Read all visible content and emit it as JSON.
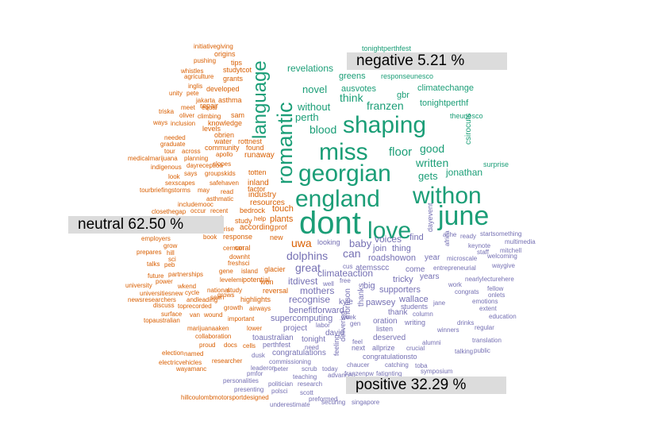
{
  "chart_data": {
    "type": "comparison_wordcloud",
    "colors": {
      "negative": "#1b9e77",
      "neutral": "#d95f02",
      "positive": "#7570b3"
    },
    "labels": {
      "negative": "negative 5.21 %",
      "neutral": "neutral 62.50 %",
      "positive": "positive 32.29 %"
    },
    "words": [
      [
        "dont",
        "negative",
        40
      ],
      [
        "june",
        "negative",
        34
      ],
      [
        "withon",
        "negative",
        30
      ],
      [
        "england",
        "negative",
        30
      ],
      [
        "georgian",
        "negative",
        30
      ],
      [
        "love",
        "negative",
        30
      ],
      [
        "miss",
        "negative",
        30
      ],
      [
        "shaping",
        "negative",
        30
      ],
      [
        "romantic",
        "negative",
        27
      ],
      [
        "language",
        "negative",
        24
      ],
      [
        "floor",
        "negative",
        15
      ],
      [
        "good",
        "negative",
        14
      ],
      [
        "written",
        "negative",
        14
      ],
      [
        "franzen",
        "negative",
        14
      ],
      [
        "think",
        "negative",
        14
      ],
      [
        "gets",
        "negative",
        13
      ],
      [
        "jonathan",
        "negative",
        12
      ],
      [
        "blood",
        "negative",
        14
      ],
      [
        "perth",
        "negative",
        13
      ],
      [
        "without",
        "negative",
        13
      ],
      [
        "novel",
        "negative",
        13
      ],
      [
        "revelations",
        "negative",
        12
      ],
      [
        "greens",
        "negative",
        11
      ],
      [
        "ausvotes",
        "negative",
        11
      ],
      [
        "gbr",
        "negative",
        11
      ],
      [
        "climatechange",
        "negative",
        11
      ],
      [
        "tonightperthf",
        "negative",
        11
      ],
      [
        "csirocuts",
        "negative",
        10
      ],
      [
        "theunesco",
        "negative",
        9
      ],
      [
        "surprise",
        "negative",
        9
      ],
      [
        "responseunesco",
        "negative",
        9
      ],
      [
        "tonightperthfest",
        "negative",
        9
      ],
      [
        "uwa",
        "neutral",
        14
      ],
      [
        "plants",
        "neutral",
        11
      ],
      [
        "touch",
        "neutral",
        11
      ],
      [
        "according",
        "neutral",
        10
      ],
      [
        "resources",
        "neutral",
        10
      ],
      [
        "industry",
        "neutral",
        10
      ],
      [
        "inland",
        "neutral",
        10
      ],
      [
        "runaway",
        "neutral",
        10
      ],
      [
        "rottnest",
        "neutral",
        9
      ],
      [
        "factor",
        "neutral",
        9
      ],
      [
        "totten",
        "neutral",
        9
      ],
      [
        "found",
        "neutral",
        9
      ],
      [
        "community",
        "neutral",
        9
      ],
      [
        "water",
        "neutral",
        9
      ],
      [
        "obrien",
        "neutral",
        9
      ],
      [
        "knowledge",
        "neutral",
        9
      ],
      [
        "levels",
        "neutral",
        9
      ],
      [
        "sam",
        "neutral",
        9
      ],
      [
        "asthma",
        "neutral",
        9
      ],
      [
        "repair",
        "neutral",
        9
      ],
      [
        "developed",
        "neutral",
        9
      ],
      [
        "grants",
        "neutral",
        9
      ],
      [
        "tips",
        "neutral",
        9
      ],
      [
        "origins",
        "neutral",
        9
      ],
      [
        "studytcot",
        "neutral",
        9
      ],
      [
        "initiativegiving",
        "neutral",
        8
      ],
      [
        "pushing",
        "neutral",
        8
      ],
      [
        "whistles",
        "neutral",
        8
      ],
      [
        "agriculture",
        "neutral",
        8
      ],
      [
        "inglis",
        "neutral",
        8
      ],
      [
        "unity",
        "neutral",
        8
      ],
      [
        "pete",
        "neutral",
        8
      ],
      [
        "jakarta",
        "neutral",
        8
      ],
      [
        "triska",
        "neutral",
        8
      ],
      [
        "meet",
        "neutral",
        8
      ],
      [
        "equal",
        "neutral",
        8
      ],
      [
        "oliver",
        "neutral",
        8
      ],
      [
        "climbing",
        "neutral",
        8
      ],
      [
        "ways",
        "neutral",
        8
      ],
      [
        "inclusion",
        "neutral",
        8
      ],
      [
        "needed",
        "neutral",
        8
      ],
      [
        "graduate",
        "neutral",
        8
      ],
      [
        "tour",
        "neutral",
        8
      ],
      [
        "across",
        "neutral",
        8
      ],
      [
        "medicalmarijuana",
        "neutral",
        8
      ],
      [
        "planning",
        "neutral",
        8
      ],
      [
        "apollo",
        "neutral",
        8
      ],
      [
        "indigenous",
        "neutral",
        8
      ],
      [
        "dayreception",
        "neutral",
        8
      ],
      [
        "slopes",
        "neutral",
        8
      ],
      [
        "look",
        "neutral",
        8
      ],
      [
        "says",
        "neutral",
        8
      ],
      [
        "groupskids",
        "neutral",
        8
      ],
      [
        "sexscapes",
        "neutral",
        8
      ],
      [
        "safehaven",
        "neutral",
        8
      ],
      [
        "tourbriefing",
        "neutral",
        8
      ],
      [
        "storms",
        "neutral",
        8
      ],
      [
        "may",
        "neutral",
        8
      ],
      [
        "read",
        "neutral",
        8
      ],
      [
        "asthmatic",
        "neutral",
        8
      ],
      [
        "includemooc",
        "neutral",
        8
      ],
      [
        "closethegap",
        "neutral",
        8
      ],
      [
        "occur",
        "neutral",
        8
      ],
      [
        "recent",
        "neutral",
        8
      ],
      [
        "bedrock",
        "neutral",
        9
      ],
      [
        "help",
        "neutral",
        8
      ],
      [
        "study",
        "neutral",
        9
      ],
      [
        "response",
        "neutral",
        9
      ],
      [
        "award",
        "neutral",
        8
      ],
      [
        "book",
        "neutral",
        8
      ],
      [
        "employers",
        "neutral",
        8
      ],
      [
        "grow",
        "neutral",
        8
      ],
      [
        "hill",
        "neutral",
        8
      ],
      [
        "prepares",
        "neutral",
        8
      ],
      [
        "sci",
        "neutral",
        8
      ],
      [
        "talks",
        "neutral",
        8
      ],
      [
        "peb",
        "neutral",
        8
      ],
      [
        "future",
        "neutral",
        8
      ],
      [
        "partnerships",
        "neutral",
        8
      ],
      [
        "university",
        "neutral",
        8
      ],
      [
        "power",
        "neutral",
        8
      ],
      [
        "wkend",
        "neutral",
        8
      ],
      [
        "universitiesnew",
        "neutral",
        8
      ],
      [
        "cycle",
        "neutral",
        8
      ],
      [
        "newsresearchers",
        "neutral",
        8
      ],
      [
        "andleading",
        "neutral",
        8
      ],
      [
        "discuss",
        "neutral",
        8
      ],
      [
        "toprecorded",
        "neutral",
        8
      ],
      [
        "surface",
        "neutral",
        8
      ],
      [
        "van",
        "neutral",
        8
      ],
      [
        "wound",
        "neutral",
        8
      ],
      [
        "topaustralian",
        "neutral",
        8
      ],
      [
        "marijuanaaken",
        "neutral",
        8
      ],
      [
        "collaboration",
        "neutral",
        8
      ],
      [
        "proud",
        "neutral",
        8
      ],
      [
        "docs",
        "neutral",
        8
      ],
      [
        "named",
        "neutral",
        8
      ],
      [
        "election",
        "neutral",
        8
      ],
      [
        "electricvehicles",
        "neutral",
        8
      ],
      [
        "wayamanc",
        "neutral",
        8
      ],
      [
        "researcher",
        "neutral",
        8
      ],
      [
        "cells",
        "neutral",
        8
      ],
      [
        "hillcoulombmotorsportdesigned",
        "neutral",
        8
      ],
      [
        "cerman",
        "neutral",
        8
      ],
      [
        "coral",
        "neutral",
        9
      ],
      [
        "downht",
        "neutral",
        8
      ],
      [
        "freshsci",
        "neutral",
        8
      ],
      [
        "gene",
        "neutral",
        8
      ],
      [
        "island",
        "neutral",
        8
      ],
      [
        "glacier",
        "neutral",
        9
      ],
      [
        "levelemi",
        "neutral",
        8
      ],
      [
        "potential",
        "neutral",
        9
      ],
      [
        "national",
        "neutral",
        8
      ],
      [
        "study",
        "neutral",
        8
      ],
      [
        "highlights",
        "neutral",
        9
      ],
      [
        "grows",
        "neutral",
        8
      ],
      [
        "growth",
        "neutral",
        8
      ],
      [
        "airways",
        "neutral",
        8
      ],
      [
        "important",
        "neutral",
        8
      ],
      [
        "lower",
        "neutral",
        8
      ],
      [
        "new",
        "neutral",
        9
      ],
      [
        "reversal",
        "neutral",
        9
      ],
      [
        "prof",
        "neutral",
        9
      ],
      [
        "won",
        "neutral",
        9
      ],
      [
        "rise",
        "neutral",
        8
      ],
      [
        "seen",
        "neutral",
        8
      ],
      [
        "dolphins",
        "positive",
        14
      ],
      [
        "can",
        "positive",
        14
      ],
      [
        "great",
        "positive",
        14
      ],
      [
        "baby",
        "positive",
        13
      ],
      [
        "voices",
        "positive",
        12
      ],
      [
        "find",
        "positive",
        11
      ],
      [
        "join",
        "positive",
        11
      ],
      [
        "thing",
        "positive",
        11
      ],
      [
        "climateaction",
        "positive",
        12
      ],
      [
        "roadshowon",
        "positive",
        11
      ],
      [
        "atemsscc",
        "positive",
        10
      ],
      [
        "come",
        "positive",
        10
      ],
      [
        "year",
        "positive",
        10
      ],
      [
        "tricky",
        "positive",
        11
      ],
      [
        "itdivest",
        "positive",
        12
      ],
      [
        "mothers",
        "positive",
        12
      ],
      [
        "big",
        "positive",
        11
      ],
      [
        "supporters",
        "positive",
        11
      ],
      [
        "wallace",
        "positive",
        11
      ],
      [
        "recognise",
        "positive",
        12
      ],
      [
        "pawsey",
        "positive",
        11
      ],
      [
        "kyle",
        "positive",
        10
      ],
      [
        "thank",
        "positive",
        10
      ],
      [
        "students",
        "positive",
        9
      ],
      [
        "benefitforward",
        "positive",
        11
      ],
      [
        "supercomputing",
        "positive",
        11
      ],
      [
        "oration",
        "positive",
        10
      ],
      [
        "writing",
        "positive",
        9
      ],
      [
        "project",
        "positive",
        10
      ],
      [
        "david",
        "positive",
        10
      ],
      [
        "listen",
        "positive",
        9
      ],
      [
        "toaustralian",
        "positive",
        10
      ],
      [
        "tonight",
        "positive",
        10
      ],
      [
        "deserved",
        "positive",
        10
      ],
      [
        "congratulations",
        "positive",
        10
      ],
      [
        "next",
        "positive",
        9
      ],
      [
        "allprize",
        "positive",
        9
      ],
      [
        "crucial",
        "positive",
        8
      ],
      [
        "perthfest",
        "positive",
        9
      ],
      [
        "need",
        "positive",
        8
      ],
      [
        "congratulationsto",
        "positive",
        9
      ],
      [
        "peter",
        "positive",
        8
      ],
      [
        "commissioning",
        "positive",
        8
      ],
      [
        "scrub",
        "positive",
        8
      ],
      [
        "today",
        "positive",
        8
      ],
      [
        "chaucer",
        "positive",
        8
      ],
      [
        "catching",
        "positive",
        8
      ],
      [
        "toba",
        "positive",
        8
      ],
      [
        "symposium",
        "positive",
        8
      ],
      [
        "teaching",
        "positive",
        8
      ],
      [
        "franzenpw",
        "positive",
        8
      ],
      [
        "fatignting",
        "positive",
        8
      ],
      [
        "personalities",
        "positive",
        8
      ],
      [
        "politician",
        "positive",
        8
      ],
      [
        "research",
        "positive",
        8
      ],
      [
        "advanced",
        "positive",
        8
      ],
      [
        "presenting",
        "positive",
        8
      ],
      [
        "polsci",
        "positive",
        8
      ],
      [
        "scott",
        "positive",
        8
      ],
      [
        "preformed",
        "positive",
        8
      ],
      [
        "underestimate",
        "positive",
        8
      ],
      [
        "securing",
        "positive",
        8
      ],
      [
        "singapore",
        "positive",
        8
      ],
      [
        "ready",
        "positive",
        8
      ],
      [
        "startsomething",
        "positive",
        8
      ],
      [
        "keynote",
        "positive",
        8
      ],
      [
        "multimedia",
        "positive",
        8
      ],
      [
        "staff",
        "positive",
        8
      ],
      [
        "mitchell",
        "positive",
        8
      ],
      [
        "microscale",
        "positive",
        8
      ],
      [
        "welcoming",
        "positive",
        8
      ],
      [
        "entrepreneurial",
        "positive",
        8
      ],
      [
        "waygive",
        "positive",
        8
      ],
      [
        "nearlylecturehere",
        "positive",
        8
      ],
      [
        "congrats",
        "positive",
        8
      ],
      [
        "fellow",
        "positive",
        8
      ],
      [
        "onlets",
        "positive",
        8
      ],
      [
        "emotions",
        "positive",
        8
      ],
      [
        "extent",
        "positive",
        8
      ],
      [
        "education",
        "positive",
        8
      ],
      [
        "drinks",
        "positive",
        8
      ],
      [
        "regular",
        "positive",
        8
      ],
      [
        "winners",
        "positive",
        8
      ],
      [
        "alumni",
        "positive",
        8
      ],
      [
        "translation",
        "positive",
        8
      ],
      [
        "talking",
        "positive",
        8
      ],
      [
        "public",
        "positive",
        8
      ],
      [
        "jane",
        "positive",
        8
      ],
      [
        "column",
        "positive",
        8
      ],
      [
        "free",
        "positive",
        8
      ],
      [
        "cus",
        "positive",
        8
      ],
      [
        "well",
        "positive",
        8
      ],
      [
        "work",
        "positive",
        8
      ],
      [
        "labor",
        "positive",
        8
      ],
      [
        "gen",
        "positive",
        8
      ],
      [
        "feel",
        "positive",
        8
      ],
      [
        "morrison",
        "positive",
        10
      ],
      [
        "thanks",
        "positive",
        10
      ],
      [
        "delivering",
        "positive",
        9
      ],
      [
        "feeling",
        "positive",
        9
      ],
      [
        "leaderon",
        "positive",
        8
      ],
      [
        "pmfor",
        "positive",
        8
      ],
      [
        "dusk",
        "positive",
        8
      ],
      [
        "looking",
        "positive",
        9
      ],
      [
        "week",
        "positive",
        8
      ],
      [
        "dayevent",
        "positive",
        9
      ],
      [
        "ache",
        "positive",
        8
      ],
      [
        "africa",
        "positive",
        8
      ],
      [
        "years",
        "positive",
        10
      ]
    ]
  }
}
